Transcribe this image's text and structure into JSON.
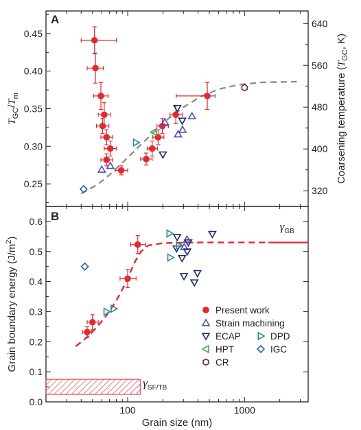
{
  "chart_data": [
    {
      "type": "scatter",
      "panel_label": "A",
      "ylabel_left": {
        "main": "T",
        "sub1": "GC",
        "mid": "/",
        "main2": "T",
        "sub2": "m"
      },
      "ylabel_right": {
        "text": "Coarsening temperature (",
        "italic": "T",
        "sub": "GC",
        "tail": ", K)"
      },
      "xscale": "log",
      "xlim": [
        20,
        3500
      ],
      "ylim": [
        0.22,
        0.48
      ],
      "right_ylim": [
        290,
        664
      ],
      "yticks": [
        0.25,
        0.3,
        0.35,
        0.4,
        0.45
      ],
      "ytick_labels": [
        "0.25",
        "0.30",
        "0.35",
        "0.40",
        "0.45"
      ],
      "right_yticks": [
        320,
        400,
        480,
        560,
        640
      ],
      "right_ytick_labels": [
        "320",
        "400",
        "480",
        "560",
        "640"
      ],
      "series": [
        {
          "name": "Present work",
          "marker": "filled-circle",
          "color": "#e8262b",
          "points": [
            {
              "x": 52,
              "y": 0.441,
              "xerr": [
                12,
                28
              ],
              "yerr": 0.018
            },
            {
              "x": 53,
              "y": 0.404,
              "xerr": [
                8,
                9
              ],
              "yerr": 0.02
            },
            {
              "x": 59,
              "y": 0.367,
              "xerr": [
                8,
                9
              ],
              "yerr": 0.018
            },
            {
              "x": 63,
              "y": 0.342,
              "xerr": [
                7,
                8
              ],
              "yerr": 0.016
            },
            {
              "x": 61,
              "y": 0.327,
              "xerr": [
                7,
                8
              ],
              "yerr": 0.01
            },
            {
              "x": 66,
              "y": 0.312,
              "xerr": [
                7,
                8
              ],
              "yerr": 0.01
            },
            {
              "x": 71,
              "y": 0.297,
              "xerr": [
                8,
                9
              ],
              "yerr": 0.01
            },
            {
              "x": 66,
              "y": 0.282,
              "xerr": [
                7,
                8
              ],
              "yerr": 0.008
            },
            {
              "x": 88,
              "y": 0.268,
              "xerr": [
                10,
                12
              ],
              "yerr": 0.006
            },
            {
              "x": 144,
              "y": 0.283,
              "xerr": [
                15,
                18
              ],
              "yerr": 0.008
            },
            {
              "x": 162,
              "y": 0.297,
              "xerr": [
                15,
                18
              ],
              "yerr": 0.01
            },
            {
              "x": 182,
              "y": 0.312,
              "xerr": [
                18,
                22
              ],
              "yerr": 0.01
            },
            {
              "x": 198,
              "y": 0.327,
              "xerr": [
                20,
                25
              ],
              "yerr": 0.01
            },
            {
              "x": 258,
              "y": 0.342,
              "xerr": [
                28,
                35
              ],
              "yerr": 0.012
            },
            {
              "x": 480,
              "y": 0.367,
              "xerr": [
                220,
                80
              ],
              "yerr": 0.018
            }
          ]
        },
        {
          "name": "Strain machining",
          "marker": "triangle-up",
          "color": "#4a4fc4",
          "points": [
            {
              "x": 60,
              "y": 0.269
            },
            {
              "x": 71,
              "y": 0.274
            },
            {
              "x": 208,
              "y": 0.332
            },
            {
              "x": 270,
              "y": 0.316
            },
            {
              "x": 295,
              "y": 0.322
            },
            {
              "x": 355,
              "y": 0.34
            }
          ]
        },
        {
          "name": "ECAP",
          "marker": "triangle-down",
          "color": "#1d2a6b",
          "points": [
            {
              "x": 200,
              "y": 0.289
            },
            {
              "x": 266,
              "y": 0.351
            },
            {
              "x": 293,
              "y": 0.334
            }
          ]
        },
        {
          "name": "HPT",
          "marker": "triangle-left",
          "color": "#49b04a",
          "points": [
            {
              "x": 168,
              "y": 0.319
            }
          ]
        },
        {
          "name": "DPD",
          "marker": "triangle-right",
          "color": "#2b8a8f",
          "points": [
            {
              "x": 118,
              "y": 0.305
            }
          ]
        },
        {
          "name": "IGC",
          "marker": "diamond",
          "color": "#2a5fa8",
          "points": [
            {
              "x": 42,
              "y": 0.243
            }
          ]
        },
        {
          "name": "CR",
          "marker": "hexagon",
          "color": "#7a2a22",
          "points": [
            {
              "x": 1000,
              "y": 0.378
            }
          ]
        }
      ],
      "fit_curve": {
        "style": "dashed",
        "color": "#8f8f8f",
        "points": [
          [
            40,
            0.237
          ],
          [
            55,
            0.249
          ],
          [
            70,
            0.262
          ],
          [
            90,
            0.278
          ],
          [
            120,
            0.297
          ],
          [
            160,
            0.316
          ],
          [
            220,
            0.336
          ],
          [
            300,
            0.352
          ],
          [
            420,
            0.366
          ],
          [
            600,
            0.376
          ],
          [
            900,
            0.382
          ],
          [
            1400,
            0.385
          ],
          [
            2800,
            0.386
          ]
        ]
      },
      "grid": false
    },
    {
      "type": "scatter",
      "panel_label": "B",
      "xlabel": "Grain size (nm)",
      "ylabel": "Grain boundary energy (J/m",
      "ylabel_sup": "2",
      "ylabel_tail": ")",
      "xscale": "log",
      "xlim": [
        20,
        3500
      ],
      "ylim": [
        0.0,
        0.65
      ],
      "yticks": [
        0.0,
        0.1,
        0.2,
        0.3,
        0.4,
        0.5,
        0.6
      ],
      "ytick_labels": [
        "0.0",
        "0.1",
        "0.2",
        "0.3",
        "0.4",
        "0.5",
        "0.6"
      ],
      "xticks": [
        100,
        1000
      ],
      "xtick_labels": [
        "100",
        "1000"
      ],
      "series": [
        {
          "name": "Present work",
          "marker": "filled-circle",
          "color": "#e8262b",
          "points": [
            {
              "x": 45,
              "y": 0.232,
              "xerr": [
                4,
                4
              ],
              "yerr": 0.018
            },
            {
              "x": 50,
              "y": 0.265,
              "xerr": [
                5,
                6
              ],
              "yerr": 0.025
            },
            {
              "x": 100,
              "y": 0.41,
              "xerr": [
                14,
                18
              ],
              "yerr": 0.03
            },
            {
              "x": 122,
              "y": 0.523,
              "xerr": [
                16,
                20
              ],
              "yerr": 0.03
            }
          ]
        },
        {
          "name": "Strain machining",
          "marker": "triangle-up",
          "color": "#4a4fc4",
          "points": [
            {
              "x": 305,
              "y": 0.515
            },
            {
              "x": 322,
              "y": 0.54
            }
          ]
        },
        {
          "name": "ECAP",
          "marker": "triangle-down",
          "color": "#1d2a6b",
          "points": [
            {
              "x": 265,
              "y": 0.548
            },
            {
              "x": 262,
              "y": 0.51
            },
            {
              "x": 292,
              "y": 0.478
            },
            {
              "x": 303,
              "y": 0.418
            },
            {
              "x": 323,
              "y": 0.5
            },
            {
              "x": 330,
              "y": 0.53
            },
            {
              "x": 372,
              "y": 0.397
            },
            {
              "x": 395,
              "y": 0.428
            },
            {
              "x": 530,
              "y": 0.558
            }
          ]
        },
        {
          "name": "HPT",
          "marker": "triangle-left",
          "color": "#49b04a",
          "points": []
        },
        {
          "name": "DPD",
          "marker": "triangle-right",
          "color": "#2b8a8f",
          "points": [
            {
              "x": 66,
              "y": 0.3
            },
            {
              "x": 76,
              "y": 0.31
            },
            {
              "x": 228,
              "y": 0.56
            },
            {
              "x": 232,
              "y": 0.48
            },
            {
              "x": 275,
              "y": 0.52
            }
          ]
        },
        {
          "name": "IGC",
          "marker": "diamond",
          "color": "#2a5fa8",
          "points": [
            {
              "x": 43,
              "y": 0.45
            }
          ]
        },
        {
          "name": "CR",
          "marker": "hexagon",
          "color": "#7a2a22",
          "points": []
        }
      ],
      "fit_curve": {
        "style": "dashed",
        "color": "#e8262b",
        "points": [
          [
            36,
            0.185
          ],
          [
            45,
            0.215
          ],
          [
            55,
            0.25
          ],
          [
            65,
            0.285
          ],
          [
            75,
            0.32
          ],
          [
            85,
            0.355
          ],
          [
            95,
            0.392
          ],
          [
            105,
            0.43
          ],
          [
            115,
            0.465
          ],
          [
            130,
            0.5
          ],
          [
            150,
            0.52
          ],
          [
            200,
            0.528
          ],
          [
            400,
            0.53
          ],
          [
            1000,
            0.53
          ],
          [
            1600,
            0.53
          ]
        ]
      },
      "gb_line": {
        "x": [
          1600,
          3500
        ],
        "y": 0.53,
        "color": "#e8262b"
      },
      "annotations": [
        {
          "text": "γ",
          "sub": "GB",
          "x": 2000,
          "y": 0.57
        },
        {
          "text": "γ",
          "sub": "SF/TB",
          "x": 135,
          "y": 0.05
        }
      ],
      "hatched_region": {
        "x": [
          20,
          128
        ],
        "y": [
          0.025,
          0.075
        ],
        "color": "#e8262b"
      },
      "legend": {
        "placement": "lower-right",
        "entries": [
          "Present work",
          "Strain machining",
          "ECAP",
          "DPD",
          "HPT",
          "IGC",
          "CR"
        ]
      },
      "grid": false
    }
  ]
}
